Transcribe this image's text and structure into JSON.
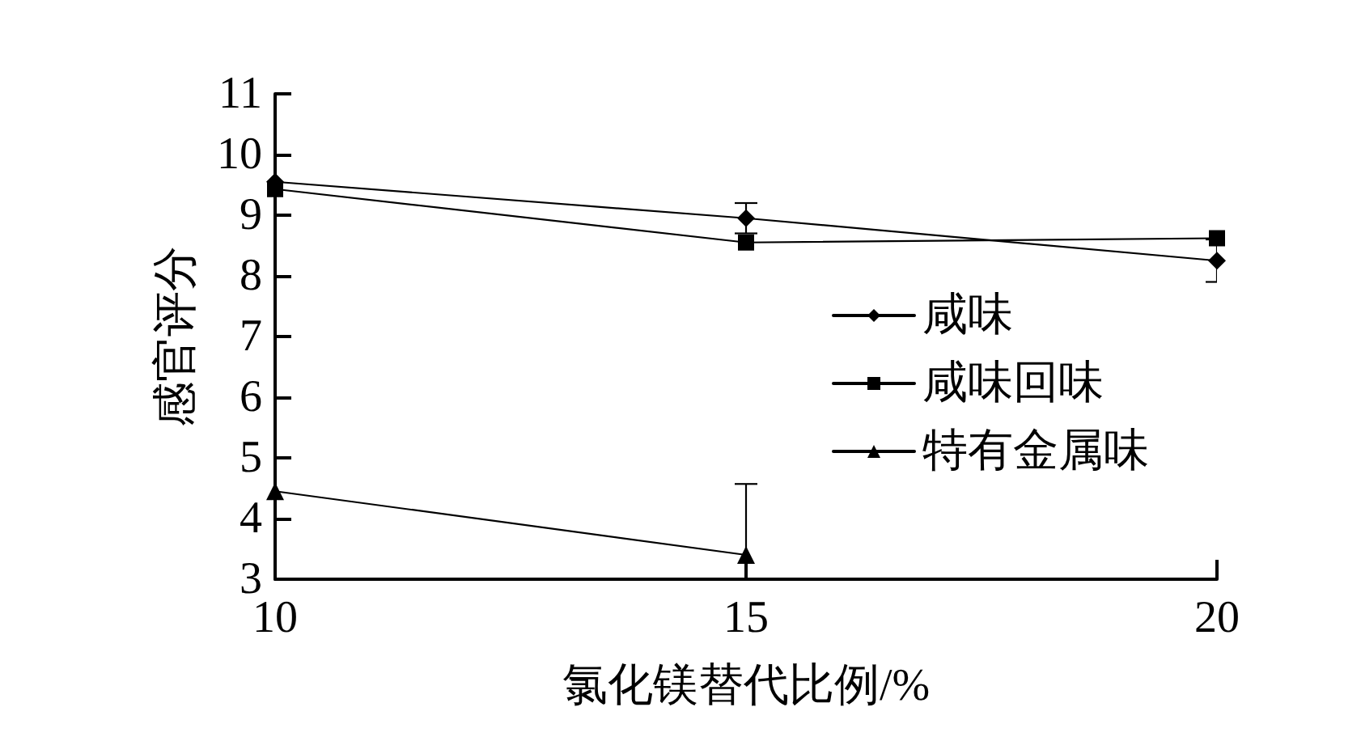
{
  "chart_data": {
    "type": "line",
    "xlabel": "氯化镁替代比例/%",
    "ylabel": "感官评分",
    "x": [
      10,
      15,
      20
    ],
    "xlim": [
      10,
      20
    ],
    "xticks": [
      10,
      15,
      20
    ],
    "ylim": [
      3,
      11
    ],
    "yticks": [
      3,
      4,
      5,
      6,
      7,
      8,
      9,
      10,
      11
    ],
    "grid": false,
    "legend": "right",
    "line_style": "solid",
    "series": [
      {
        "name": "咸味",
        "color": "#000000",
        "marker": "diamond",
        "values": [
          9.55,
          8.95,
          8.25
        ],
        "errors": [
          null,
          0.25,
          0.35
        ]
      },
      {
        "name": "咸味回味",
        "color": "#000000",
        "marker": "square",
        "values": [
          9.43,
          8.55,
          8.62
        ]
      },
      {
        "name": "特有金属味",
        "color": "#000000",
        "marker": "triangle",
        "values": [
          4.45,
          3.4,
          null
        ],
        "errors": [
          null,
          [
            3,
            4.57
          ],
          null
        ]
      }
    ]
  }
}
